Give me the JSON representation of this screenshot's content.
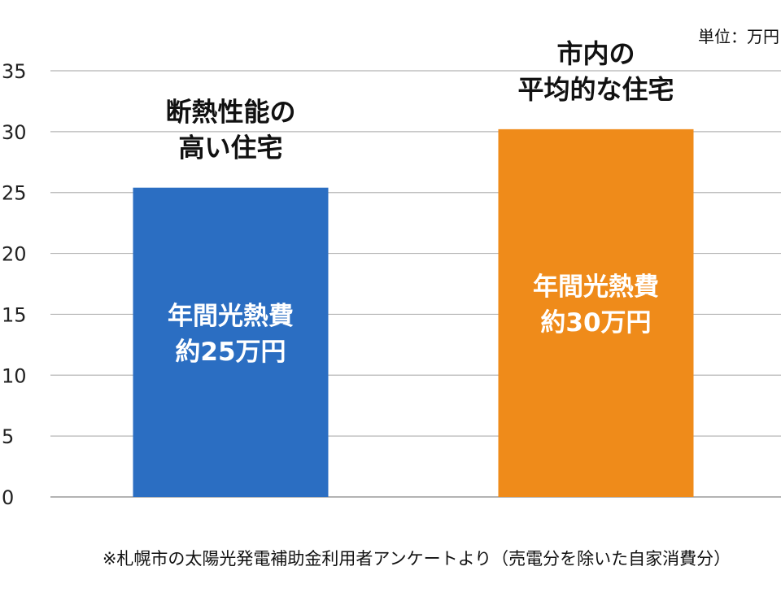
{
  "unit_label": "単位：万円",
  "footnote": "※札幌市の太陽光発電補助金利用者アンケートより（売電分を除いた自家消費分）",
  "chart_data": {
    "type": "bar",
    "title": "",
    "xlabel": "",
    "ylabel": "",
    "ylim": [
      0,
      35
    ],
    "yticks": [
      0,
      5,
      10,
      15,
      20,
      25,
      30,
      35
    ],
    "grid": true,
    "categories": [
      [
        "断熱性能の",
        "高い住宅"
      ],
      [
        "市内の",
        "平均的な住宅"
      ]
    ],
    "values": [
      25.4,
      30.2
    ],
    "colors": [
      "#2b6ec2",
      "#ef8b1a"
    ],
    "bar_labels": [
      [
        "年間光熱費",
        "約25万円"
      ],
      [
        "年間光熱費",
        "約30万円"
      ]
    ]
  }
}
